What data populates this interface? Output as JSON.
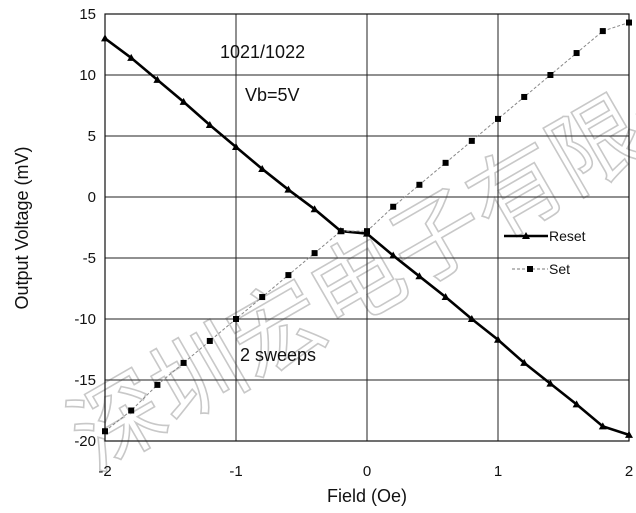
{
  "chart_data": {
    "type": "line",
    "xlabel": "Field (Oe)",
    "ylabel": "Output Voltage (mV)",
    "xlim": [
      -2,
      2
    ],
    "ylim": [
      -20,
      15
    ],
    "x_ticks": [
      "-2",
      "-1",
      "0",
      "1",
      "2"
    ],
    "y_ticks": [
      "15",
      "10",
      "5",
      "0",
      "-5",
      "-10",
      "-15",
      "-20"
    ],
    "grid": true,
    "legend_position": "right",
    "annotations": [
      "1021/1022",
      "Vb=5V",
      "2 sweeps"
    ],
    "watermark": "深圳宏电子有限公司",
    "series": [
      {
        "name": "Reset",
        "marker": "triangle",
        "line_style": "solid",
        "color": "#000000",
        "x": [
          -2.0,
          -1.8,
          -1.6,
          -1.4,
          -1.2,
          -1.0,
          -0.8,
          -0.6,
          -0.4,
          -0.2,
          0.0,
          0.2,
          0.4,
          0.6,
          0.8,
          1.0,
          1.2,
          1.4,
          1.6,
          1.8,
          2.0
        ],
        "y": [
          13.0,
          11.4,
          9.6,
          7.8,
          5.9,
          4.1,
          2.3,
          0.6,
          -1.0,
          -2.8,
          -3.0,
          -4.8,
          -6.5,
          -8.2,
          -10.0,
          -11.7,
          -13.6,
          -15.3,
          -17.0,
          -18.8,
          -19.5
        ]
      },
      {
        "name": "Set",
        "marker": "square",
        "line_style": "dashed",
        "color": "#000000",
        "x": [
          -2.0,
          -1.8,
          -1.6,
          -1.4,
          -1.2,
          -1.0,
          -0.8,
          -0.6,
          -0.4,
          -0.2,
          0.0,
          0.2,
          0.4,
          0.6,
          0.8,
          1.0,
          1.2,
          1.4,
          1.6,
          1.8,
          2.0
        ],
        "y": [
          -19.2,
          -17.5,
          -15.4,
          -13.6,
          -11.8,
          -10.0,
          -8.2,
          -6.4,
          -4.6,
          -2.8,
          -2.8,
          -0.8,
          1.0,
          2.8,
          4.6,
          6.4,
          8.2,
          10.0,
          11.8,
          13.6,
          14.3
        ]
      }
    ]
  }
}
